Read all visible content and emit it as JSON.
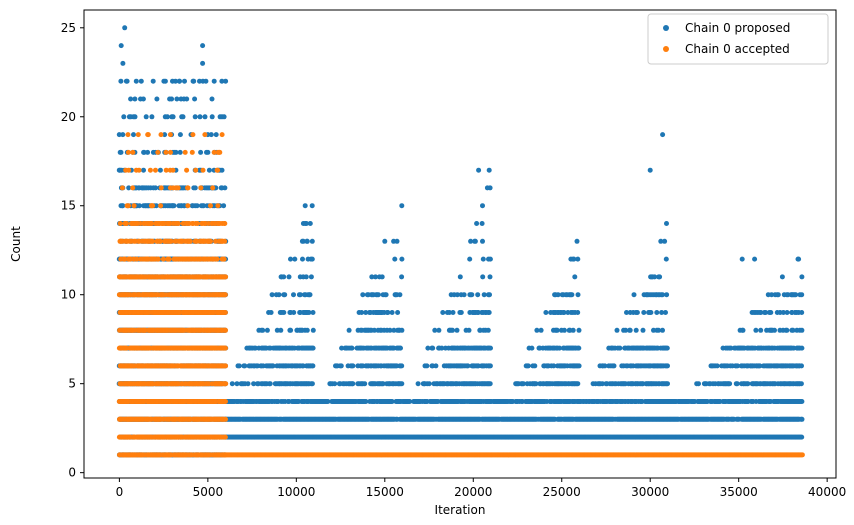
{
  "chart_data": {
    "type": "scatter",
    "title": "",
    "xlabel": "Iteration",
    "ylabel": "Count",
    "xlim": [
      -2000,
      40500
    ],
    "ylim": [
      -0.3,
      26
    ],
    "xticks": [
      0,
      5000,
      10000,
      15000,
      20000,
      25000,
      30000,
      35000,
      40000
    ],
    "yticks": [
      0,
      5,
      10,
      15,
      20,
      25
    ],
    "grid": false,
    "legend_position": "top-right",
    "colors": {
      "proposed": "#1f77b4",
      "accepted": "#ff7f0e",
      "frame": "#000000"
    },
    "series": [
      {
        "name": "Chain 0 proposed",
        "band_description": "dense bands of points from iteration 0 to ~38600",
        "segments": [
          {
            "x_range": [
              0,
              6000
            ],
            "y_range": [
              1,
              25
            ],
            "max_points": [
              [
                300,
                25
              ],
              [
                4700,
                24
              ],
              [
                100,
                24
              ],
              [
                200,
                23
              ],
              [
                4700,
                23
              ],
              [
                6000,
                22
              ],
              [
                2600,
                22
              ],
              [
                3000,
                22
              ],
              [
                3400,
                22
              ]
            ]
          },
          {
            "x_range": [
              6000,
              38600
            ],
            "y_min": 1,
            "y_max": 19
          }
        ],
        "sparse_outliers": [
          [
            10500,
            15
          ],
          [
            10400,
            14
          ],
          [
            10600,
            13
          ],
          [
            15000,
            13
          ],
          [
            15500,
            13
          ],
          [
            20300,
            17
          ],
          [
            20900,
            17
          ],
          [
            20800,
            16
          ],
          [
            20500,
            14
          ],
          [
            30700,
            19
          ],
          [
            30000,
            17
          ],
          [
            30600,
            13
          ],
          [
            35200,
            12
          ],
          [
            35900,
            12
          ],
          [
            38000,
            9
          ]
        ]
      },
      {
        "name": "Chain 0 accepted",
        "band_description": "accepted points mostly within iterations 0 to ~6000, then y=1 band to ~38600",
        "segments": [
          {
            "x_range": [
              0,
              6000
            ],
            "y_range": [
              1,
              19
            ]
          },
          {
            "x_range": [
              6000,
              38600
            ],
            "y_values": [
              1
            ]
          }
        ]
      }
    ]
  }
}
